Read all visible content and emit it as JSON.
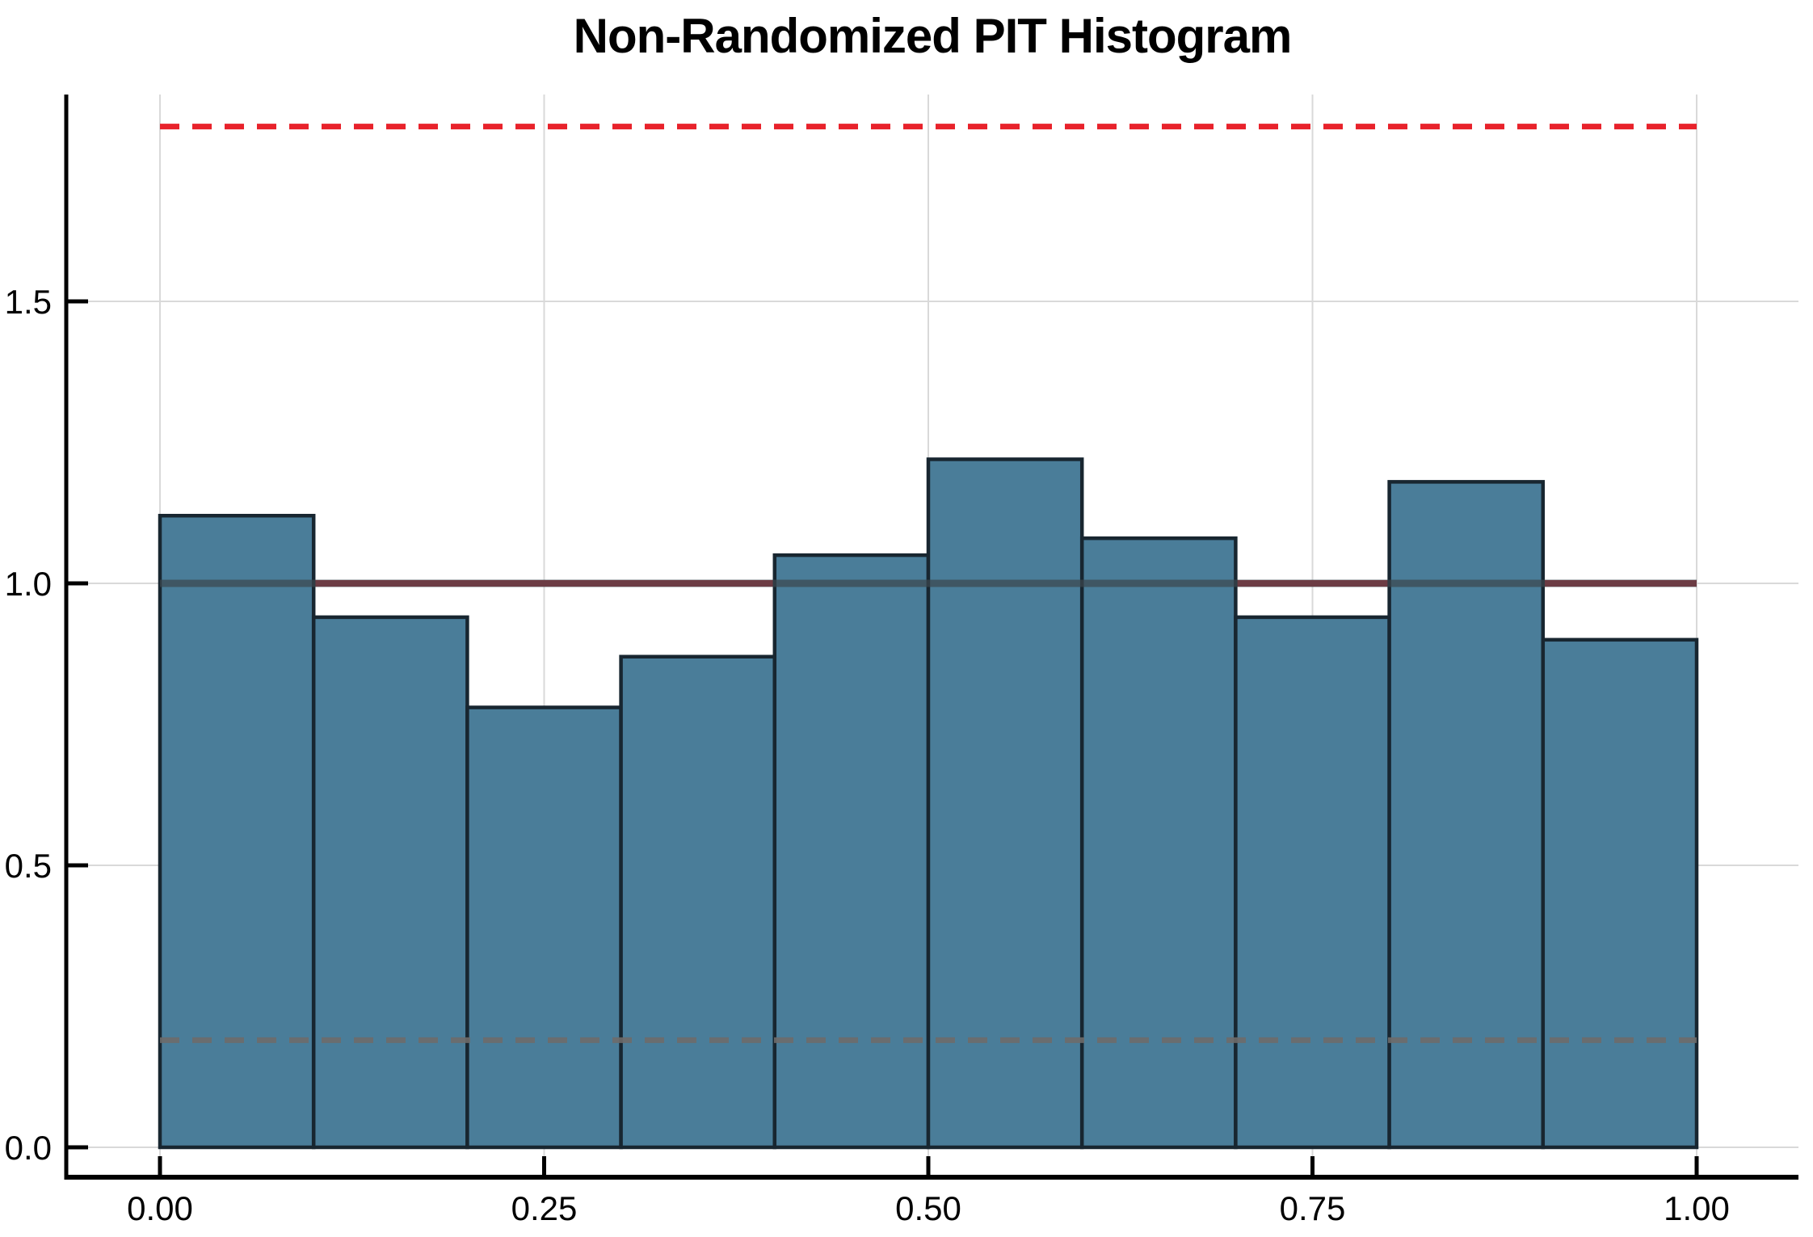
{
  "chart_data": {
    "type": "bar",
    "variant": "histogram",
    "title": "Non-Randomized PIT Histogram",
    "xlabel": "",
    "ylabel": "",
    "grid": true,
    "legend": "none",
    "bin_edges": [
      0.0,
      0.1,
      0.2,
      0.3,
      0.4,
      0.5,
      0.6,
      0.7,
      0.8,
      0.9,
      1.0
    ],
    "values": [
      1.12,
      0.94,
      0.78,
      0.87,
      1.05,
      1.22,
      1.08,
      0.94,
      1.18,
      0.9
    ],
    "x_ticks": [
      "0.00",
      "0.25",
      "0.50",
      "0.75",
      "1.00"
    ],
    "x_tick_values": [
      0.0,
      0.25,
      0.5,
      0.75,
      1.0
    ],
    "y_ticks": [
      "0.0",
      "0.5",
      "1.0",
      "1.5"
    ],
    "y_tick_values": [
      0.0,
      0.5,
      1.0,
      1.5
    ],
    "xlim": [
      -0.061,
      1.066
    ],
    "ylim": [
      -0.053,
      1.867
    ],
    "reference_lines": [
      {
        "name": "uniform-density-line",
        "value": 1.0,
        "style": "solid",
        "color": "#E8222B",
        "width": 8,
        "drawn_over_bars": false
      },
      {
        "name": "band-upper-line",
        "value": 1.81,
        "style": "dashed",
        "color": "#E8222B",
        "width": 7,
        "drawn_over_bars": false
      },
      {
        "name": "band-lower-line",
        "value": 0.19,
        "style": "dashed",
        "color": "#E8222B",
        "width": 7,
        "drawn_over_bars": false
      },
      {
        "name": "uniform-density-overlay",
        "value": 1.0,
        "style": "solid",
        "color": "rgba(60,70,78,0.72)",
        "width": 9,
        "drawn_over_bars": true
      },
      {
        "name": "band-lower-overlay",
        "value": 0.19,
        "style": "dashed",
        "color": "rgba(110,108,106,0.9)",
        "width": 7,
        "drawn_over_bars": true
      }
    ],
    "colors": {
      "bar_fill": "#4A7D99",
      "bar_edge": "#182630",
      "grid": "#D9D9D9",
      "axis": "#000000",
      "reference_red": "#E8222B",
      "background": "#FFFFFF"
    }
  }
}
